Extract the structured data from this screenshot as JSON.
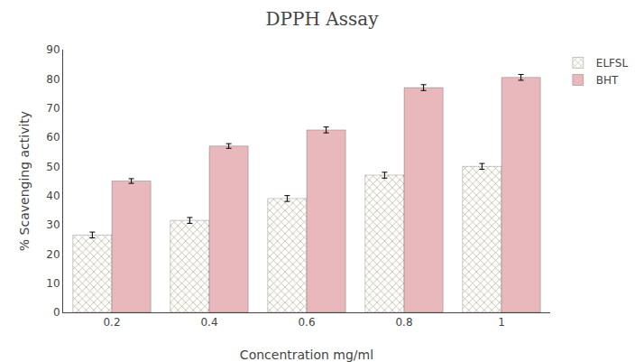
{
  "chart_data": {
    "type": "bar",
    "title": "DPPH Assay",
    "xlabel": "Concentration mg/ml",
    "ylabel": "% Scavenging activity",
    "categories": [
      "0.2",
      "0.4",
      "0.6",
      "0.8",
      "1"
    ],
    "series": [
      {
        "name": "ELFSL",
        "color": "#ddd5a8",
        "values": [
          26.5,
          31.5,
          39.0,
          47.0,
          50.0
        ],
        "errors": [
          1.0,
          1.0,
          1.0,
          1.0,
          1.0
        ]
      },
      {
        "name": "BHT",
        "color": "#e8b8bc",
        "values": [
          45.0,
          57.0,
          62.5,
          77.0,
          80.5
        ],
        "errors": [
          0.8,
          0.8,
          1.0,
          1.0,
          1.0
        ]
      }
    ],
    "ylim": [
      0,
      90
    ],
    "yticks": [
      0,
      10,
      20,
      30,
      40,
      50,
      60,
      70,
      80,
      90
    ],
    "grid": false,
    "legend": "upper right"
  }
}
